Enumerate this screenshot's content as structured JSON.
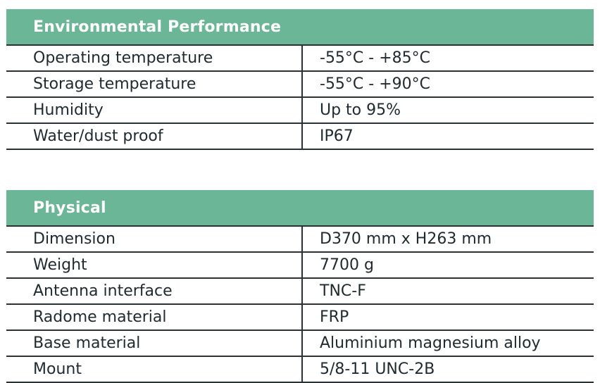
{
  "environmental": {
    "title": "Environmental Performance",
    "rows": [
      {
        "label": "Operating temperature",
        "value": "-55°C - +85°C"
      },
      {
        "label": "Storage temperature",
        "value": "-55°C - +90°C"
      },
      {
        "label": "Humidity",
        "value": "Up to 95%"
      },
      {
        "label": "Water/dust proof",
        "value": "IP67"
      }
    ]
  },
  "physical": {
    "title": "Physical",
    "rows": [
      {
        "label": "Dimension",
        "value": "D370 mm x H263 mm"
      },
      {
        "label": "Weight",
        "value": "7700 g"
      },
      {
        "label": "Antenna interface",
        "value": "TNC-F"
      },
      {
        "label": "Radome material",
        "value": "FRP"
      },
      {
        "label": "Base material",
        "value": "Aluminium magnesium alloy"
      },
      {
        "label": "Mount",
        "value": "5/8-11 UNC-2B"
      }
    ]
  },
  "colors": {
    "header_bg": "#6bb696",
    "header_text": "#ffffff",
    "rule": "#2a3236",
    "text": "#1f2a2e"
  }
}
